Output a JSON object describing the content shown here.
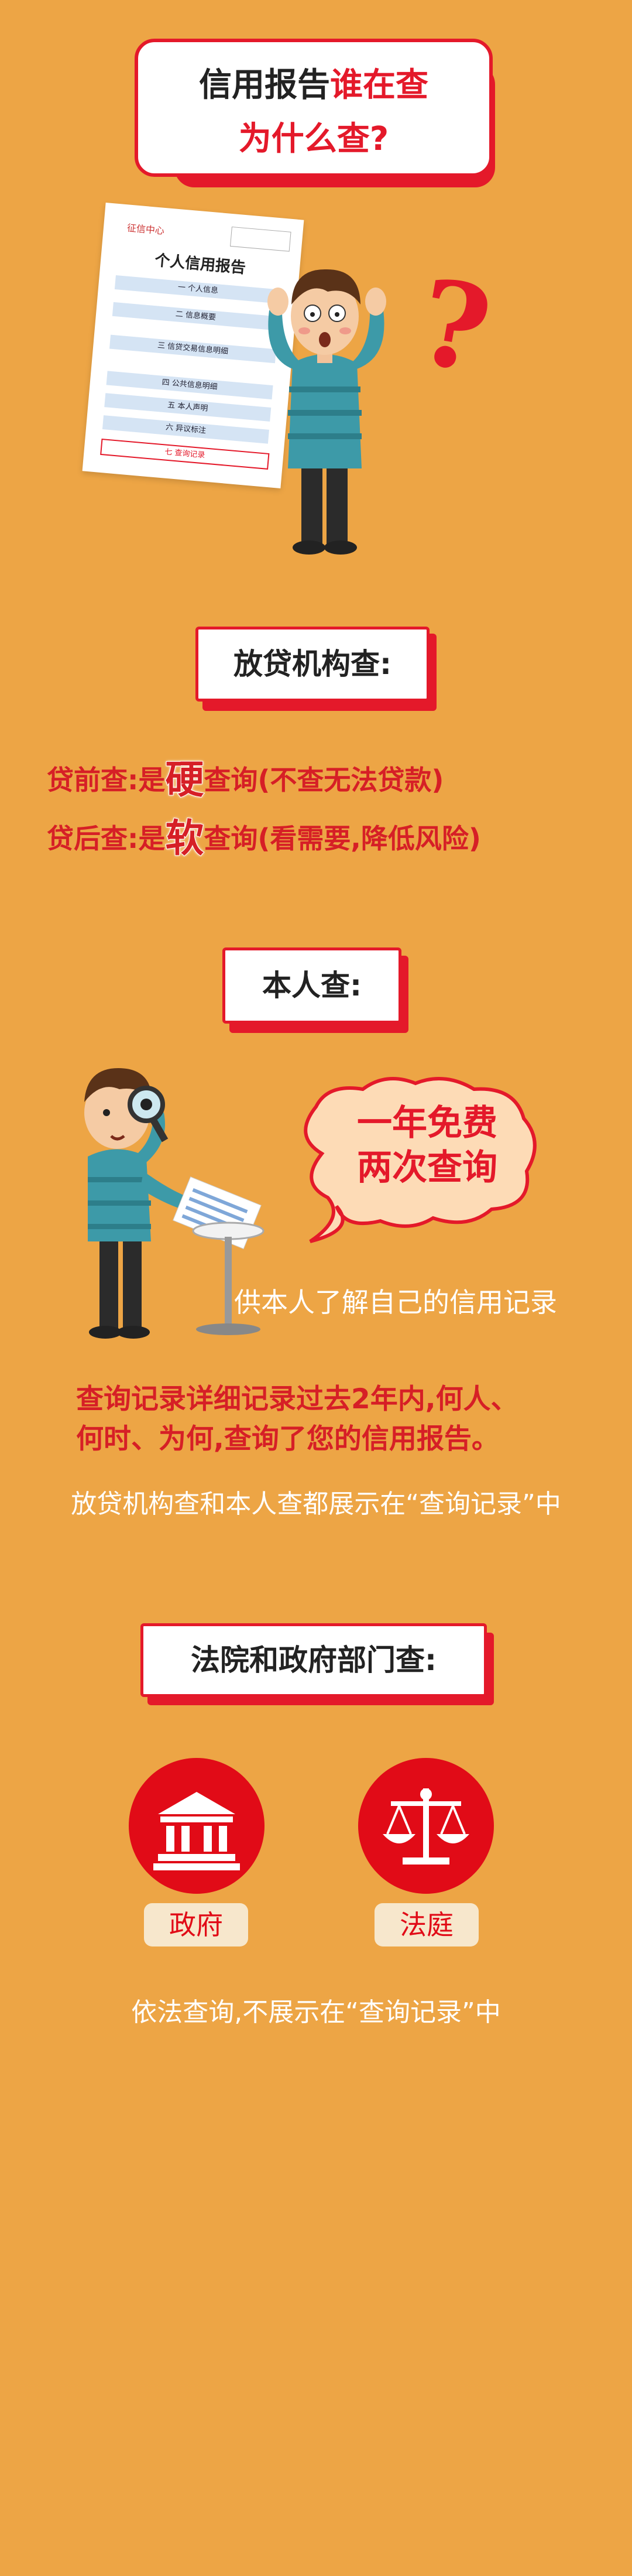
{
  "header": {
    "line1_part1": "信用报告",
    "line1_part2": "谁在查",
    "line2": "为什么查?"
  },
  "report": {
    "header_text": "征信中心",
    "title": "个人信用报告",
    "rows": [
      "一 个人信息",
      "二 信息概要",
      "三 信贷交易信息明细",
      "四 公共信息明细",
      "五 本人声明",
      "六 异议标注",
      "七 查询记录"
    ]
  },
  "question_mark": "?",
  "lender_section": {
    "label": "放贷机构查:",
    "pre_loan_prefix": "贷前查:是",
    "pre_loan_char": "硬",
    "pre_loan_suffix": "查询(不查无法贷款)",
    "post_loan_prefix": "贷后查:是",
    "post_loan_char": "软",
    "post_loan_suffix": "查询(看需要,降低风险)"
  },
  "self_section": {
    "label": "本人查:",
    "bubble_line1": "一年免费",
    "bubble_line2": "两次查询",
    "caption": "供本人了解自己的信用记录",
    "detail_line1": "查询记录详细记录过去2年内,何人、",
    "detail_line2": "何时、为何,查询了您的信用报告。",
    "note": "放贷机构查和本人查都展示在“查询记录”中"
  },
  "court_section": {
    "label": "法院和政府部门查:",
    "government_tag": "政府",
    "court_tag": "法庭",
    "note": "依法查询,不展示在“查询记录”中"
  },
  "colors": {
    "background": "#eda545",
    "accent_red": "#e4192a",
    "text_red": "#d61f26"
  }
}
